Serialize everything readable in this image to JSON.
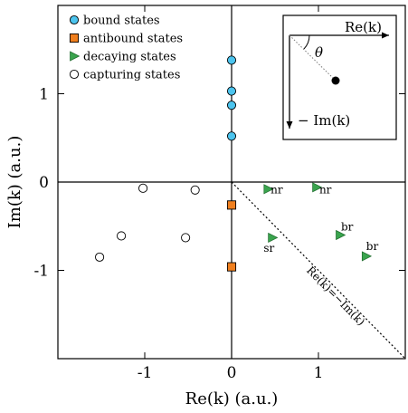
{
  "chart_data": {
    "type": "scatter",
    "xlabel": "Re(k) (a.u.)",
    "ylabel": "Im(k) (a.u.)",
    "xlim": [
      -2.0,
      2.0
    ],
    "ylim": [
      -2.0,
      2.0
    ],
    "xticks": [
      {
        "v": -1,
        "label": "-1"
      },
      {
        "v": 0,
        "label": "0"
      },
      {
        "v": 1,
        "label": "1"
      }
    ],
    "yticks": [
      {
        "v": -1,
        "label": "-1"
      },
      {
        "v": 0,
        "label": "0"
      },
      {
        "v": 1,
        "label": "1"
      }
    ],
    "grid": false,
    "legend_position": "top-left",
    "series": [
      {
        "name": "bound states",
        "marker": "circle",
        "color": "#4cc4ee",
        "points": [
          [
            0,
            1.38
          ],
          [
            0,
            1.03
          ],
          [
            0,
            0.87
          ],
          [
            0,
            0.52
          ]
        ]
      },
      {
        "name": "antibound states",
        "marker": "square",
        "color": "#f07f1e",
        "points": [
          [
            0,
            -0.26
          ],
          [
            0,
            -0.96
          ]
        ]
      },
      {
        "name": "decaying states",
        "marker": "triangle-right",
        "color": "#3aa44e",
        "points": [
          [
            0.42,
            -0.08
          ],
          [
            0.98,
            -0.06
          ],
          [
            0.47,
            -0.63
          ],
          [
            1.25,
            -0.6
          ],
          [
            1.55,
            -0.84
          ]
        ]
      },
      {
        "name": "capturing states",
        "marker": "open-circle",
        "color": "#ffffff",
        "points": [
          [
            -1.02,
            -0.07
          ],
          [
            -0.42,
            -0.09
          ],
          [
            -1.27,
            -0.61
          ],
          [
            -0.53,
            -0.63
          ],
          [
            -1.52,
            -0.85
          ]
        ]
      }
    ],
    "annotations": [
      {
        "text": "nr",
        "x": 0.52,
        "y": -0.13
      },
      {
        "text": "nr",
        "x": 1.08,
        "y": -0.13
      },
      {
        "text": "sr",
        "x": 0.43,
        "y": -0.79
      },
      {
        "text": "br",
        "x": 1.33,
        "y": -0.55
      },
      {
        "text": "br",
        "x": 1.62,
        "y": -0.77
      }
    ],
    "diagonal_line": {
      "from": [
        0,
        0
      ],
      "to": [
        2.0,
        -2.0
      ],
      "label": "Re(k)=−Im(k)",
      "label_at": [
        1.17,
        -1.32
      ]
    },
    "inset": {
      "x_axis_label": "Re(k)",
      "y_axis_label": "− Im(k)",
      "angle_label": "θ"
    }
  }
}
